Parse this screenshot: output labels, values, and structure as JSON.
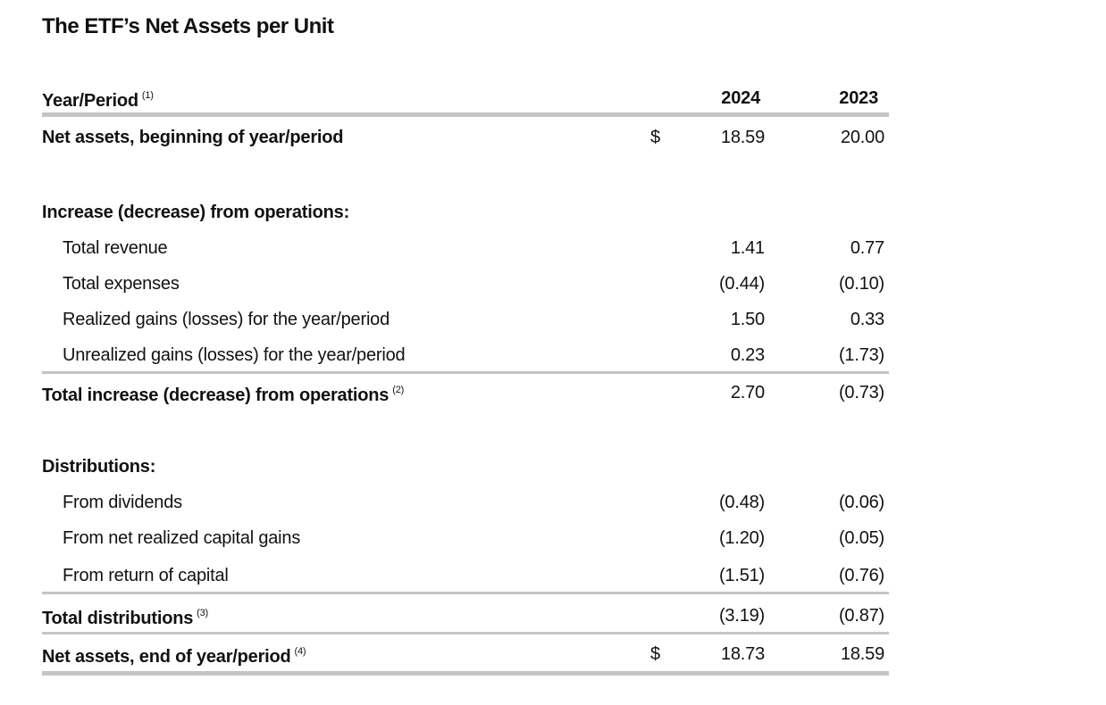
{
  "title": "The ETF’s Net Assets per Unit",
  "table": {
    "header": {
      "label": "Year/Period",
      "note": "(1)",
      "columns": [
        "2024",
        "2023"
      ]
    },
    "opening": {
      "label": "Net assets, beginning of year/period",
      "currency": "$",
      "values": [
        "18.59",
        "20.00"
      ]
    },
    "sections": [
      {
        "heading": "Increase (decrease) from operations:",
        "items": [
          {
            "label": "Total revenue",
            "values": [
              "1.41",
              "0.77"
            ]
          },
          {
            "label": "Total expenses",
            "values": [
              "(0.44)",
              "(0.10)"
            ]
          },
          {
            "label": "Realized gains (losses) for the year/period",
            "values": [
              "1.50",
              "0.33"
            ]
          },
          {
            "label": "Unrealized gains (losses) for the year/period",
            "values": [
              "0.23",
              "(1.73)"
            ]
          }
        ],
        "total": {
          "label": "Total increase (decrease) from operations",
          "note": "(2)",
          "values": [
            "2.70",
            "(0.73)"
          ]
        }
      },
      {
        "heading": "Distributions:",
        "items": [
          {
            "label": "From dividends",
            "values": [
              "(0.48)",
              "(0.06)"
            ]
          },
          {
            "label": "From net realized capital gains",
            "values": [
              "(1.20)",
              "(0.05)"
            ]
          },
          {
            "label": "From return of capital",
            "values": [
              "(1.51)",
              "(0.76)"
            ]
          }
        ],
        "total": {
          "label": "Total distributions",
          "note": "(3)",
          "values": [
            "(3.19)",
            "(0.87)"
          ]
        }
      }
    ],
    "closing": {
      "label": "Net assets, end of year/period",
      "note": "(4)",
      "currency": "$",
      "values": [
        "18.73",
        "18.59"
      ]
    }
  }
}
